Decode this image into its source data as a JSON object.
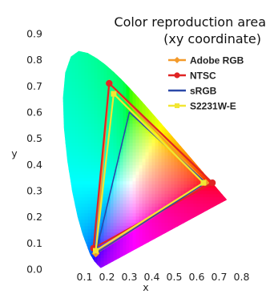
{
  "chart_data": {
    "type": "scatter",
    "title_line1": "Color reproduction area",
    "title_line2": "(xy coordinate)",
    "xlabel": "x",
    "ylabel": "y",
    "xlim": [
      0.0,
      0.8
    ],
    "ylim": [
      0.0,
      0.9
    ],
    "x_ticks": [
      "0.1",
      "0.2",
      "0.3",
      "0.4",
      "0.5",
      "0.6",
      "0.7",
      "0.8"
    ],
    "y_ticks": [
      "0.0",
      "0.1",
      "0.2",
      "0.3",
      "0.4",
      "0.5",
      "0.6",
      "0.7",
      "0.8",
      "0.9"
    ],
    "legend_position": "top-right",
    "spectral_locus": [
      [
        0.1741,
        0.005
      ],
      [
        0.1738,
        0.0049
      ],
      [
        0.1736,
        0.0049
      ],
      [
        0.1733,
        0.0048
      ],
      [
        0.1726,
        0.0048
      ],
      [
        0.1714,
        0.0051
      ],
      [
        0.1689,
        0.0069
      ],
      [
        0.1644,
        0.0109
      ],
      [
        0.1566,
        0.0177
      ],
      [
        0.144,
        0.0297
      ],
      [
        0.1241,
        0.0578
      ],
      [
        0.0913,
        0.1327
      ],
      [
        0.0687,
        0.2007
      ],
      [
        0.0454,
        0.295
      ],
      [
        0.0235,
        0.4127
      ],
      [
        0.0082,
        0.5384
      ],
      [
        0.0039,
        0.6548
      ],
      [
        0.0139,
        0.7502
      ],
      [
        0.0389,
        0.812
      ],
      [
        0.0743,
        0.8338
      ],
      [
        0.1142,
        0.8262
      ],
      [
        0.1547,
        0.8059
      ],
      [
        0.1929,
        0.7816
      ],
      [
        0.2296,
        0.7543
      ],
      [
        0.2658,
        0.7243
      ],
      [
        0.3016,
        0.6923
      ],
      [
        0.3373,
        0.6589
      ],
      [
        0.3731,
        0.6245
      ],
      [
        0.4087,
        0.5896
      ],
      [
        0.4441,
        0.5547
      ],
      [
        0.4788,
        0.5202
      ],
      [
        0.5125,
        0.4866
      ],
      [
        0.5448,
        0.4544
      ],
      [
        0.5752,
        0.4242
      ],
      [
        0.6029,
        0.3965
      ],
      [
        0.627,
        0.3725
      ],
      [
        0.6482,
        0.3514
      ],
      [
        0.6658,
        0.334
      ],
      [
        0.6801,
        0.3197
      ],
      [
        0.6915,
        0.3083
      ],
      [
        0.7006,
        0.2993
      ],
      [
        0.7079,
        0.292
      ],
      [
        0.714,
        0.2859
      ],
      [
        0.719,
        0.2809
      ],
      [
        0.723,
        0.277
      ],
      [
        0.726,
        0.274
      ],
      [
        0.7283,
        0.2717
      ],
      [
        0.73,
        0.27
      ],
      [
        0.7311,
        0.2689
      ],
      [
        0.732,
        0.268
      ],
      [
        0.7327,
        0.2673
      ],
      [
        0.7334,
        0.2666
      ],
      [
        0.734,
        0.266
      ],
      [
        0.7344,
        0.2656
      ],
      [
        0.7346,
        0.2654
      ],
      [
        0.7347,
        0.2653
      ]
    ],
    "series": [
      {
        "name": "Adobe RGB",
        "color": "#f39a2a",
        "marker": "diamond",
        "points": [
          [
            0.64,
            0.33
          ],
          [
            0.21,
            0.71
          ],
          [
            0.15,
            0.06
          ]
        ]
      },
      {
        "name": "NTSC",
        "color": "#e02424",
        "marker": "circle",
        "points": [
          [
            0.67,
            0.33
          ],
          [
            0.21,
            0.71
          ],
          [
            0.14,
            0.08
          ]
        ]
      },
      {
        "name": "sRGB",
        "color": "#2b49a8",
        "marker": "none",
        "points": [
          [
            0.64,
            0.33
          ],
          [
            0.3,
            0.6
          ],
          [
            0.15,
            0.06
          ]
        ]
      },
      {
        "name": "S2231W-E",
        "color": "#f2e634",
        "marker": "square",
        "points": [
          [
            0.63,
            0.33
          ],
          [
            0.23,
            0.67
          ],
          [
            0.15,
            0.07
          ]
        ]
      }
    ]
  }
}
